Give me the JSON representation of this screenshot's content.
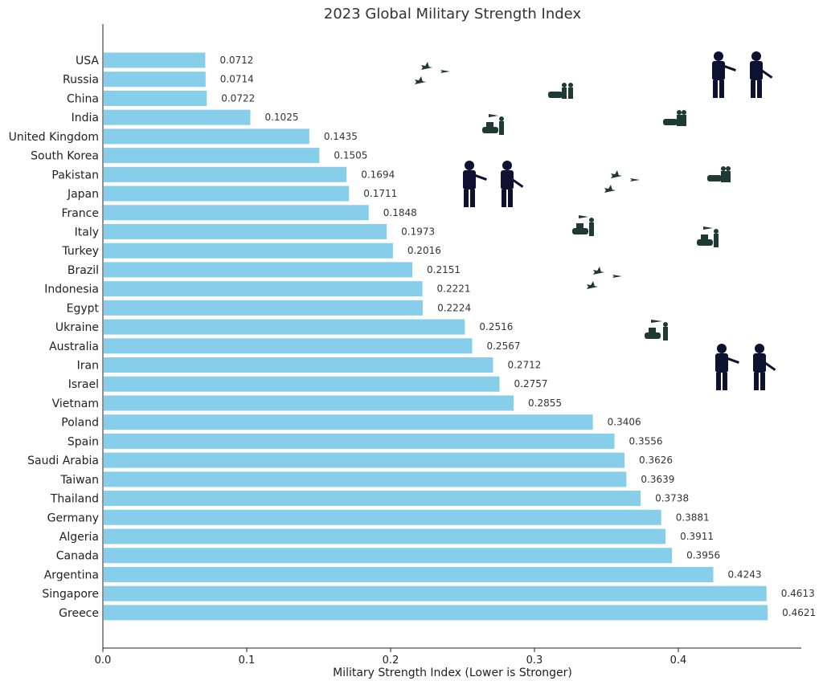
{
  "chart_data": {
    "type": "bar",
    "orientation": "horizontal",
    "title": "2023 Global Military Strength Index",
    "xlabel": "Military Strength Index (Lower is Stronger)",
    "ylabel": "",
    "xlim": [
      0,
      0.487
    ],
    "xticks": [
      0.0,
      0.1,
      0.2,
      0.3,
      0.4
    ],
    "xtick_labels": [
      "0.0",
      "0.1",
      "0.2",
      "0.3",
      "0.4"
    ],
    "grid": false,
    "bar_color": "#87CEEB",
    "categories": [
      "USA",
      "Russia",
      "China",
      "India",
      "United Kingdom",
      "South Korea",
      "Pakistan",
      "Japan",
      "France",
      "Italy",
      "Turkey",
      "Brazil",
      "Indonesia",
      "Egypt",
      "Ukraine",
      "Australia",
      "Iran",
      "Israel",
      "Vietnam",
      "Poland",
      "Spain",
      "Saudi Arabia",
      "Taiwan",
      "Thailand",
      "Germany",
      "Algeria",
      "Canada",
      "Argentina",
      "Singapore",
      "Greece"
    ],
    "values": [
      0.0712,
      0.0714,
      0.0722,
      0.1025,
      0.1435,
      0.1505,
      0.1694,
      0.1711,
      0.1848,
      0.1973,
      0.2016,
      0.2151,
      0.2221,
      0.2224,
      0.2516,
      0.2567,
      0.2712,
      0.2757,
      0.2855,
      0.3406,
      0.3556,
      0.3626,
      0.3639,
      0.3738,
      0.3881,
      0.3911,
      0.3956,
      0.4243,
      0.4613,
      0.4621
    ],
    "value_labels": [
      "0.0712",
      "0.0714",
      "0.0722",
      "0.1025",
      "0.1435",
      "0.1505",
      "0.1694",
      "0.1711",
      "0.1848",
      "0.1973",
      "0.2016",
      "0.2151",
      "0.2221",
      "0.2224",
      "0.2516",
      "0.2567",
      "0.2712",
      "0.2757",
      "0.2855",
      "0.3406",
      "0.3556",
      "0.3626",
      "0.3639",
      "0.3738",
      "0.3881",
      "0.3911",
      "0.3956",
      "0.4243",
      "0.4613",
      "0.4621"
    ]
  },
  "decorations": {
    "silhouettes": [
      "soldier-pair-icon",
      "soldier-pair-icon",
      "soldier-pair-icon",
      "fighter-jet-icon",
      "tank-soldier-icon"
    ]
  }
}
